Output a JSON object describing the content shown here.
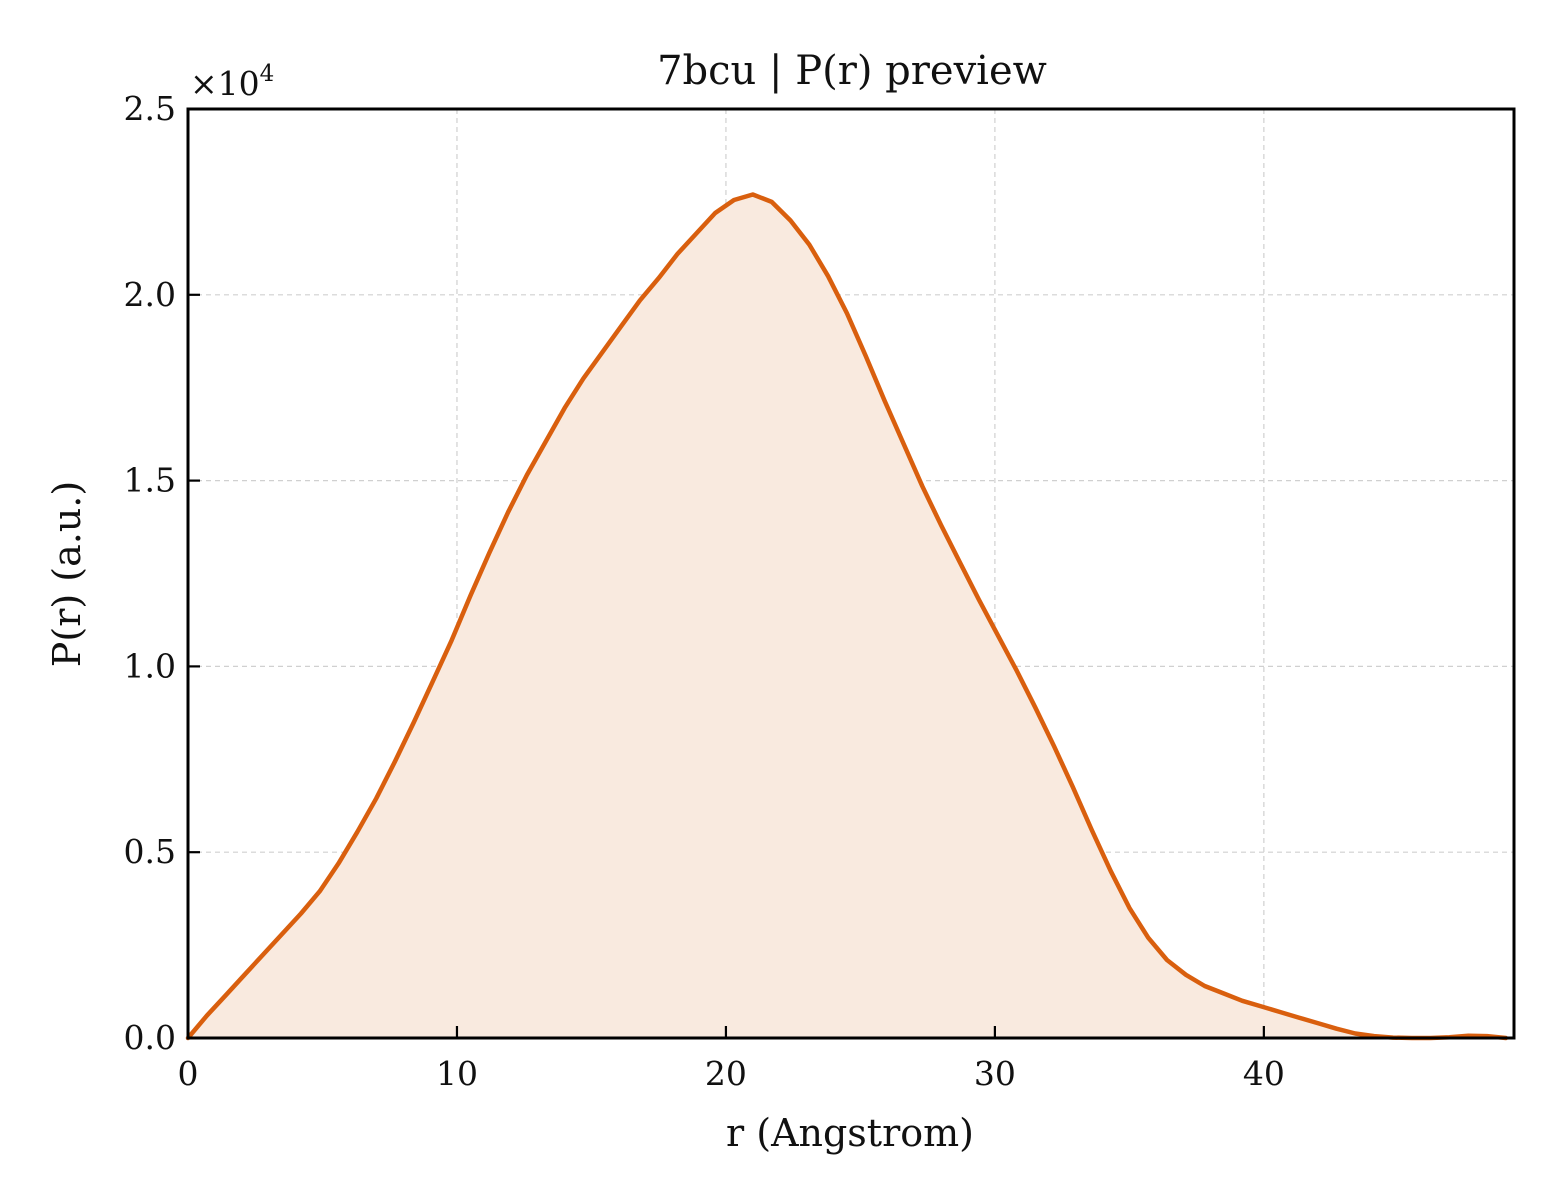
{
  "chart_data": {
    "type": "area",
    "title": "7bcu | P(r) preview",
    "xlabel": "r (Angstrom)",
    "ylabel": "P(r) (a.u.)",
    "y_scale_prefix": "×10",
    "y_scale_exponent": "4",
    "xlim": [
      0,
      49.3
    ],
    "ylim": [
      0,
      25000
    ],
    "x_ticks": [
      0,
      10,
      20,
      30,
      40
    ],
    "x_tick_labels": [
      "0",
      "10",
      "20",
      "30",
      "40"
    ],
    "y_ticks": [
      0,
      5000,
      10000,
      15000,
      20000,
      25000
    ],
    "y_tick_labels": [
      "0.0",
      "0.5",
      "1.0",
      "1.5",
      "2.0",
      "2.5"
    ],
    "grid": true,
    "line_color": "#d95f0e",
    "fill_color": "#f9eadf",
    "series": [
      {
        "x": [
          0,
          0.7,
          1.4,
          2.1,
          2.8,
          3.5,
          4.2,
          4.9,
          5.6,
          6.3,
          7.0,
          7.7,
          8.4,
          9.1,
          9.8,
          10.5,
          11.2,
          11.9,
          12.6,
          13.3,
          14.0,
          14.7,
          15.4,
          16.1,
          16.8,
          17.5,
          18.2,
          18.9,
          19.6,
          20.3,
          21.0,
          21.7,
          22.4,
          23.1,
          23.8,
          24.5,
          25.2,
          25.9,
          26.6,
          27.3,
          28.0,
          28.7,
          29.4,
          30.1,
          30.8,
          31.5,
          32.2,
          32.9,
          33.6,
          34.3,
          35.0,
          35.7,
          36.4,
          37.1,
          37.8,
          38.5,
          39.2,
          39.9,
          40.6,
          41.3,
          42.0,
          42.7,
          43.4,
          44.1,
          44.8,
          45.5,
          46.2,
          46.9,
          47.6,
          48.3,
          49.0
        ],
        "y": [
          0,
          600,
          1150,
          1700,
          2250,
          2800,
          3350,
          3950,
          4700,
          5550,
          6450,
          7450,
          8500,
          9600,
          10700,
          11900,
          13050,
          14150,
          15150,
          16050,
          16950,
          17750,
          18450,
          19150,
          19850,
          20450,
          21100,
          21650,
          22200,
          22550,
          22700,
          22500,
          22000,
          21350,
          20500,
          19500,
          18350,
          17150,
          16000,
          14850,
          13800,
          12800,
          11800,
          10850,
          9900,
          8900,
          7850,
          6750,
          5600,
          4500,
          3500,
          2700,
          2100,
          1700,
          1400,
          1200,
          1000,
          850,
          700,
          550,
          400,
          250,
          120,
          50,
          10,
          0,
          0,
          20,
          60,
          50,
          0
        ]
      }
    ]
  }
}
